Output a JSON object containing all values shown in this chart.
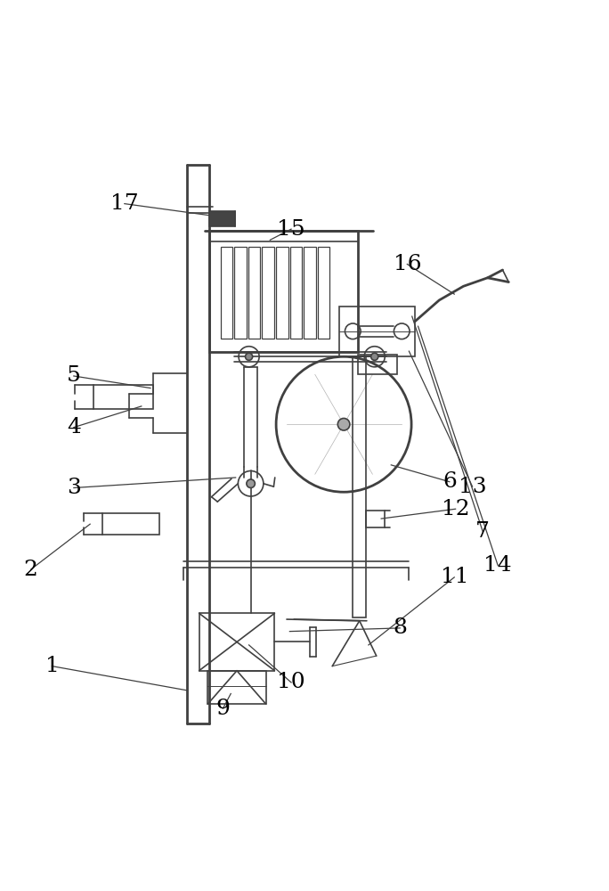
{
  "bg_color": "#ffffff",
  "line_color": "#404040",
  "label_color": "#000000",
  "figsize": [
    6.84,
    10.0
  ],
  "dpi": 100,
  "label_fontsize": 18,
  "lw": 1.2,
  "lw_thick": 2.0
}
